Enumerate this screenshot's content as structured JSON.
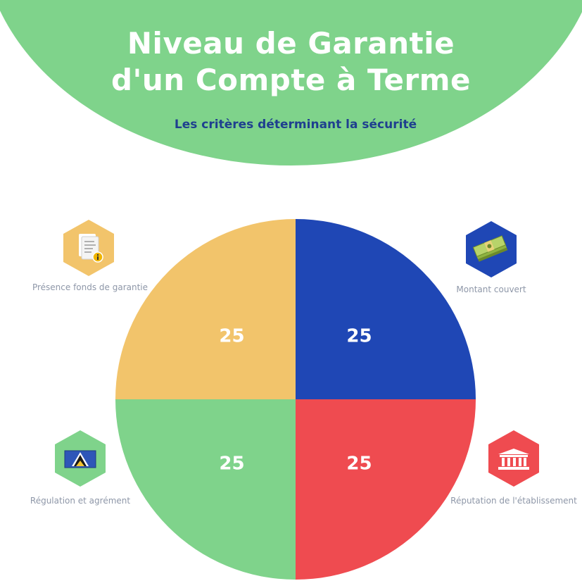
{
  "title_line1": "Niveau de Garantie",
  "title_line2": "d'un Compte à Terme",
  "subtitle": "Les critères déterminant la sécurité",
  "chart_data": {
    "type": "pie",
    "title": "Niveau de Garantie d'un Compte à Terme",
    "subtitle": "Les critères déterminant la sécurité",
    "categories": [
      "Montant couvert",
      "Réputation de l'établissement",
      "Régulation et agrément",
      "Présence fonds de garantie"
    ],
    "values": [
      25,
      25,
      25,
      25
    ],
    "colors": [
      "#1f47b5",
      "#ef4b50",
      "#7fd38b",
      "#f2c46b"
    ],
    "icons": [
      "money-icon",
      "bank-building-icon",
      "flag-icon",
      "document-info-icon"
    ]
  }
}
